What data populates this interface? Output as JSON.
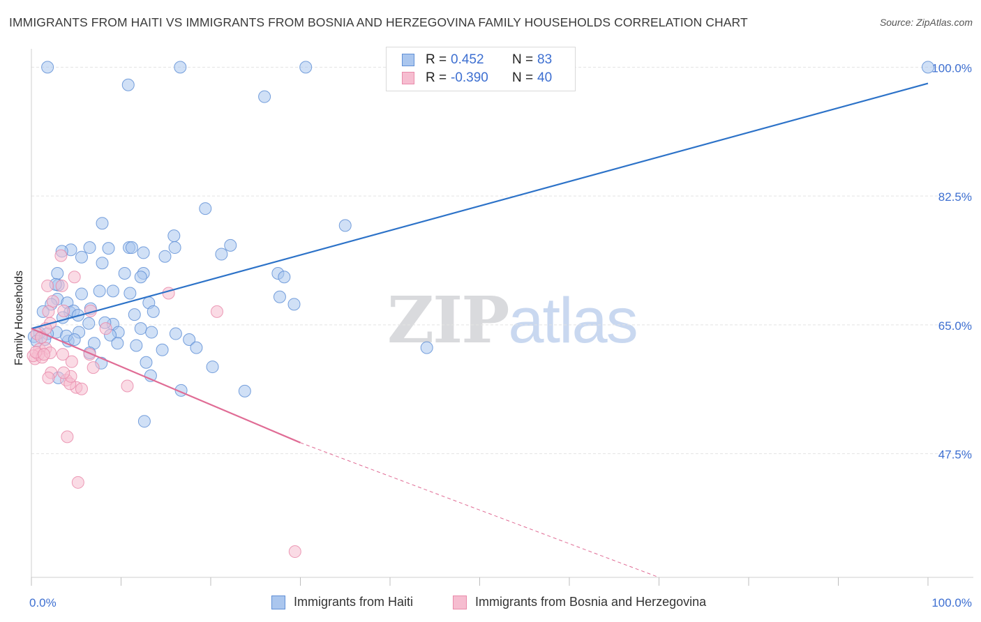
{
  "title": "IMMIGRANTS FROM HAITI VS IMMIGRANTS FROM BOSNIA AND HERZEGOVINA FAMILY HOUSEHOLDS CORRELATION CHART",
  "source": "Source: ZipAtlas.com",
  "watermark": {
    "zip": "ZIP",
    "atlas": "atlas"
  },
  "legend": {
    "r_label": "R =",
    "n_label": "N =",
    "rows": [
      {
        "r": "0.452",
        "n": "83"
      },
      {
        "r": "-0.390",
        "n": "40"
      }
    ]
  },
  "colors": {
    "haiti_fill": "#aac6ee",
    "haiti_stroke": "#5f8fd6",
    "haiti_line": "#2c72c8",
    "bosnia_fill": "#f6bdd0",
    "bosnia_stroke": "#e98aaa",
    "bosnia_line": "#e06c95",
    "tick_label": "#3d6fd1",
    "grid": "#e3e3e3"
  },
  "chart_data": {
    "type": "scatter",
    "xlabel": "",
    "ylabel": "Family Households",
    "xlim": [
      0,
      100
    ],
    "ylim": [
      30.7,
      102.5
    ],
    "x_tick_labels": [
      "0.0%",
      "100.0%"
    ],
    "y_ticks": [
      47.5,
      65.0,
      82.5,
      100.0
    ],
    "y_tick_labels": [
      "47.5%",
      "65.0%",
      "82.5%",
      "100.0%"
    ],
    "grid": true,
    "legend_position": "top-center",
    "series": [
      {
        "name": "Immigrants from Haiti",
        "color": "#5f8fd6",
        "trend": {
          "x": [
            0,
            100
          ],
          "y": [
            64.5,
            97.8
          ]
        },
        "points": [
          [
            1.8,
            100
          ],
          [
            16.6,
            100
          ],
          [
            30.6,
            100
          ],
          [
            100,
            100
          ],
          [
            10.8,
            97.6
          ],
          [
            26.0,
            96.0
          ],
          [
            19.4,
            80.8
          ],
          [
            7.9,
            78.8
          ],
          [
            35.0,
            78.5
          ],
          [
            15.9,
            77.1
          ],
          [
            22.2,
            75.8
          ],
          [
            6.5,
            75.5
          ],
          [
            8.6,
            75.4
          ],
          [
            10.9,
            75.5
          ],
          [
            11.2,
            75.5
          ],
          [
            16.0,
            75.5
          ],
          [
            4.4,
            75.2
          ],
          [
            3.4,
            75.0
          ],
          [
            12.5,
            74.8
          ],
          [
            14.9,
            74.3
          ],
          [
            21.2,
            74.6
          ],
          [
            5.6,
            74.2
          ],
          [
            7.9,
            73.4
          ],
          [
            2.9,
            72.0
          ],
          [
            10.4,
            72.0
          ],
          [
            12.5,
            72.0
          ],
          [
            12.2,
            71.5
          ],
          [
            27.5,
            72.0
          ],
          [
            28.2,
            71.5
          ],
          [
            3.0,
            70.4
          ],
          [
            2.7,
            70.5
          ],
          [
            9.1,
            69.6
          ],
          [
            7.6,
            69.6
          ],
          [
            5.6,
            69.2
          ],
          [
            11.0,
            69.3
          ],
          [
            27.7,
            68.8
          ],
          [
            2.9,
            68.5
          ],
          [
            13.1,
            68.0
          ],
          [
            2.2,
            67.8
          ],
          [
            4.0,
            68.0
          ],
          [
            29.3,
            67.8
          ],
          [
            4.3,
            66.7
          ],
          [
            6.6,
            67.2
          ],
          [
            4.7,
            66.9
          ],
          [
            1.3,
            66.8
          ],
          [
            5.2,
            66.3
          ],
          [
            13.6,
            66.8
          ],
          [
            3.5,
            66.0
          ],
          [
            11.5,
            66.4
          ],
          [
            9.1,
            65.1
          ],
          [
            0.9,
            63.9
          ],
          [
            8.2,
            65.3
          ],
          [
            6.4,
            65.2
          ],
          [
            12.2,
            64.5
          ],
          [
            2.8,
            64.0
          ],
          [
            1.8,
            63.8
          ],
          [
            5.3,
            64.0
          ],
          [
            4.1,
            62.8
          ],
          [
            9.7,
            64.0
          ],
          [
            0.3,
            63.4
          ],
          [
            0.6,
            62.8
          ],
          [
            1.5,
            63.0
          ],
          [
            8.8,
            63.6
          ],
          [
            13.4,
            64.0
          ],
          [
            16.1,
            63.8
          ],
          [
            3.9,
            63.5
          ],
          [
            17.6,
            63.0
          ],
          [
            9.6,
            62.5
          ],
          [
            11.7,
            62.2
          ],
          [
            7.0,
            62.5
          ],
          [
            4.8,
            63.0
          ],
          [
            18.4,
            61.9
          ],
          [
            6.5,
            61.2
          ],
          [
            14.6,
            61.6
          ],
          [
            7.8,
            59.8
          ],
          [
            12.8,
            59.9
          ],
          [
            20.2,
            59.3
          ],
          [
            3.0,
            57.8
          ],
          [
            13.3,
            58.1
          ],
          [
            16.7,
            56.1
          ],
          [
            23.8,
            56.0
          ],
          [
            44.1,
            61.9
          ],
          [
            12.6,
            51.9
          ]
        ]
      },
      {
        "name": "Immigrants from Bosnia and Herzegovina",
        "color": "#e98aaa",
        "trend": {
          "x": [
            0,
            30
          ],
          "y": [
            64.5,
            49.0
          ],
          "dashed_to": [
            70,
            30.7
          ]
        },
        "points": [
          [
            3.3,
            74.4
          ],
          [
            4.8,
            71.5
          ],
          [
            1.8,
            70.3
          ],
          [
            3.4,
            70.3
          ],
          [
            15.3,
            69.3
          ],
          [
            2.4,
            68.2
          ],
          [
            1.9,
            66.8
          ],
          [
            3.6,
            66.9
          ],
          [
            6.6,
            66.9
          ],
          [
            20.7,
            66.8
          ],
          [
            2.1,
            65.2
          ],
          [
            1.6,
            64.5
          ],
          [
            8.3,
            64.5
          ],
          [
            0.6,
            63.8
          ],
          [
            1.1,
            63.3
          ],
          [
            0.9,
            61.7
          ],
          [
            1.6,
            61.8
          ],
          [
            6.5,
            61.0
          ],
          [
            0.4,
            60.4
          ],
          [
            0.8,
            61.0
          ],
          [
            0.2,
            60.8
          ],
          [
            1.2,
            60.6
          ],
          [
            2.1,
            61.2
          ],
          [
            3.5,
            61.0
          ],
          [
            4.5,
            60.0
          ],
          [
            6.9,
            59.2
          ],
          [
            2.2,
            58.5
          ],
          [
            1.9,
            57.8
          ],
          [
            3.9,
            57.5
          ],
          [
            5.0,
            56.5
          ],
          [
            4.3,
            57.0
          ],
          [
            4.4,
            58.0
          ],
          [
            3.6,
            58.5
          ],
          [
            10.7,
            56.7
          ],
          [
            5.6,
            56.3
          ],
          [
            4.0,
            49.8
          ],
          [
            5.2,
            43.6
          ],
          [
            29.4,
            34.2
          ],
          [
            0.5,
            61.3
          ],
          [
            1.4,
            61.0
          ]
        ]
      }
    ]
  }
}
